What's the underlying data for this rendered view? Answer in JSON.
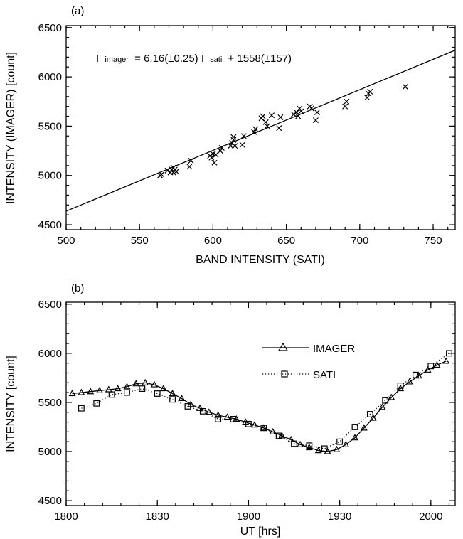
{
  "chart_data": [
    {
      "type": "scatter",
      "panel_label": "(a)",
      "xlabel": "BAND INTENSITY (SATI)",
      "ylabel": "INTENSITY (IMAGER) [count]",
      "xlim": [
        500,
        765
      ],
      "ylim": [
        4450,
        6520
      ],
      "xticks": [
        500,
        550,
        600,
        650,
        700,
        750
      ],
      "yticks": [
        4500,
        5000,
        5500,
        6000,
        6500
      ],
      "annotation": {
        "lhs_symbol": "I",
        "lhs_sub": "imager",
        "mid": "= 6.16(±0.25) I",
        "rhs_sub": "sati",
        "tail": "+ 1558(±157)"
      },
      "fit": {
        "slope": 6.16,
        "intercept": 1558
      },
      "marker": "x",
      "series": [
        {
          "x": [
            564,
            565,
            569,
            571,
            572,
            573,
            573,
            574,
            575,
            584,
            585,
            598,
            599,
            600,
            601,
            602,
            605,
            606,
            612,
            613,
            614,
            614,
            615,
            620,
            621,
            628,
            629,
            633,
            634,
            636,
            637,
            640,
            645,
            646,
            655,
            657,
            658,
            659,
            660,
            666,
            667,
            670,
            671,
            690,
            691,
            705,
            706,
            707,
            731
          ],
          "y": [
            5000,
            5010,
            5050,
            5030,
            5060,
            5080,
            5030,
            5060,
            5040,
            5090,
            5150,
            5200,
            5180,
            5220,
            5130,
            5210,
            5250,
            5280,
            5300,
            5330,
            5360,
            5390,
            5300,
            5310,
            5400,
            5440,
            5470,
            5580,
            5600,
            5540,
            5500,
            5610,
            5480,
            5590,
            5620,
            5640,
            5600,
            5680,
            5650,
            5700,
            5680,
            5560,
            5640,
            5700,
            5750,
            5790,
            5830,
            5850,
            5900
          ]
        }
      ]
    },
    {
      "type": "line",
      "panel_label": "(b)",
      "xlabel": "UT [hrs]",
      "ylabel": "INTENSITY [count]",
      "xlim": [
        0,
        128
      ],
      "ylim": [
        4450,
        6520
      ],
      "xticks": [
        0,
        30,
        60,
        90,
        120
      ],
      "xtick_labels": [
        "1800",
        "1830",
        "1900",
        "1930",
        "2000"
      ],
      "yticks": [
        4500,
        5000,
        5500,
        6000,
        6500
      ],
      "series": [
        {
          "name": "IMAGER",
          "marker": "triangle",
          "line": "solid",
          "x": [
            2,
            5,
            8,
            11,
            14,
            17,
            20,
            23,
            26,
            29,
            32,
            35,
            38,
            41,
            44,
            47,
            50,
            53,
            56,
            59,
            62,
            65,
            68,
            71,
            74,
            77,
            80,
            83,
            86,
            89,
            92,
            95,
            98,
            101,
            104,
            107,
            110,
            113,
            116,
            119,
            122,
            125
          ],
          "y": [
            5590,
            5600,
            5610,
            5620,
            5630,
            5640,
            5660,
            5690,
            5700,
            5680,
            5640,
            5590,
            5540,
            5480,
            5440,
            5400,
            5370,
            5350,
            5330,
            5300,
            5270,
            5240,
            5200,
            5160,
            5120,
            5070,
            5040,
            5010,
            5000,
            5020,
            5070,
            5140,
            5240,
            5340,
            5450,
            5550,
            5640,
            5710,
            5770,
            5830,
            5880,
            5920
          ]
        },
        {
          "name": "SATI",
          "marker": "square",
          "line": "dotted",
          "x": [
            5,
            10,
            15,
            20,
            25,
            30,
            35,
            40,
            45,
            50,
            55,
            60,
            65,
            70,
            75,
            80,
            85,
            90,
            95,
            100,
            105,
            110,
            115,
            120,
            126
          ],
          "y": [
            5440,
            5490,
            5580,
            5600,
            5640,
            5590,
            5530,
            5460,
            5410,
            5330,
            5330,
            5280,
            5240,
            5160,
            5080,
            5060,
            5030,
            5100,
            5250,
            5380,
            5520,
            5670,
            5780,
            5870,
            6000
          ]
        }
      ]
    }
  ]
}
